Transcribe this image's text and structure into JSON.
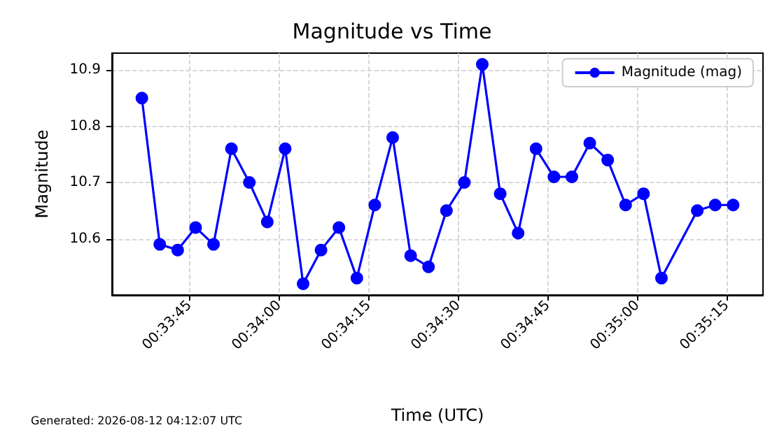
{
  "chart_data": {
    "type": "line",
    "title": "Magnitude vs Time",
    "xlabel": "Time (UTC)",
    "ylabel": "Magnitude",
    "annotations": [
      "Generated: 2026-08-12 04:12:07 UTC"
    ],
    "x": [
      0.560278,
      0.561111,
      0.561944,
      0.562778,
      0.563611,
      0.564444,
      0.565278,
      0.566111,
      0.566944,
      0.567778,
      0.568611,
      0.569444,
      0.570278,
      0.571111,
      0.571944,
      0.572778,
      0.573611,
      0.574444,
      0.575278,
      0.576111,
      0.576944,
      0.577778,
      0.578611,
      0.579444,
      0.580278,
      0.581111,
      0.581944,
      0.582778,
      0.583611,
      0.584444,
      0.586111,
      0.586944,
      0.587778
    ],
    "series": [
      {
        "name": "Magnitude (mag)",
        "color": "#0000ff",
        "values": [
          10.85,
          10.59,
          10.58,
          10.62,
          10.59,
          10.76,
          10.7,
          10.63,
          10.76,
          10.52,
          10.58,
          10.62,
          10.53,
          10.66,
          10.78,
          10.57,
          10.55,
          10.65,
          10.7,
          10.91,
          10.68,
          10.61,
          10.76,
          10.71,
          10.71,
          10.77,
          10.74,
          10.66,
          10.68,
          10.53,
          10.65,
          10.66,
          10.66
        ]
      }
    ],
    "xlim": [
      0.558889,
      0.589167
    ],
    "xticks": [
      {
        "value": 0.5625,
        "label": "00:33:45"
      },
      {
        "value": 0.566667,
        "label": "00:34:00"
      },
      {
        "value": 0.570833,
        "label": "00:34:15"
      },
      {
        "value": 0.575,
        "label": "00:34:30"
      },
      {
        "value": 0.579167,
        "label": "00:34:45"
      },
      {
        "value": 0.583333,
        "label": "00:35:00"
      },
      {
        "value": 0.5875,
        "label": "00:35:15"
      }
    ],
    "ylim": [
      10.5,
      10.93
    ],
    "yticks": [
      10.6,
      10.7,
      10.8,
      10.9
    ],
    "grid": true,
    "legend": "top right",
    "marker": "circle",
    "line_style": "solid"
  }
}
